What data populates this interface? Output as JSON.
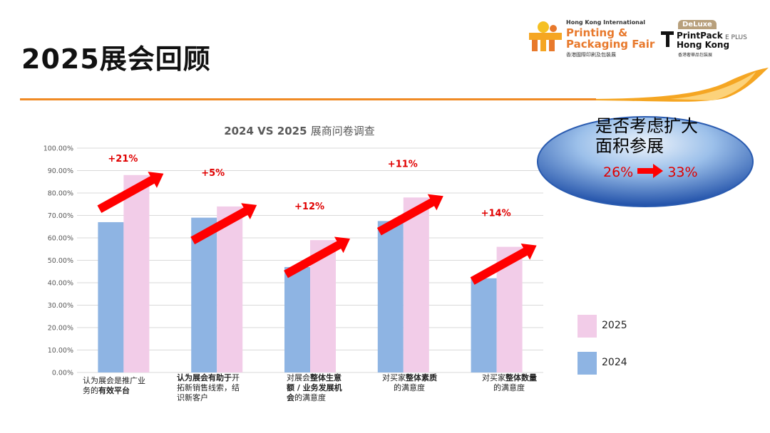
{
  "page": {
    "title": "2025展会回顾"
  },
  "logos": {
    "hkpf": {
      "small": "Hong Kong International",
      "line1": "Printing &",
      "line2": "Packaging Fair",
      "zh": "香港國際印刷及包裝展"
    },
    "deluxe": {
      "tag": "DeLuxe",
      "line1": "PrintPack",
      "line2": "Hong Kong",
      "zh": "香港奢華品包裝展",
      "eplus": "E PLUS"
    }
  },
  "callout": {
    "line1": "是否考虑扩大",
    "line2": "面积参展",
    "from": "26%",
    "to": "33%"
  },
  "chart_data": {
    "type": "bar",
    "title": "2024 VS 2025",
    "title_suffix": "展商问卷调查",
    "categories": [
      {
        "pre": "认为展会是推广业",
        "line2pre": "务的",
        "line2bold": "有效平台",
        "line3": ""
      },
      {
        "pre": "",
        "bold": "认为展会有助于",
        "post": "开",
        "line2": "拓新销售线索，结",
        "line3": "识新客户"
      },
      {
        "pre": "对展会",
        "bold": "整体生意",
        "line2bold": "额 / 业务发展机",
        "line3pre": "会",
        "line3": "的满意度"
      },
      {
        "pre": "对买家",
        "bold": "整体素质",
        "line2": "的满意度"
      },
      {
        "pre": "对买家",
        "bold": "整体数量",
        "line2": "的满意度"
      }
    ],
    "series": [
      {
        "name": "2024",
        "color": "#8eb4e3",
        "values": [
          0.67,
          0.69,
          0.47,
          0.675,
          0.42
        ]
      },
      {
        "name": "2025",
        "color": "#f2cce8",
        "values": [
          0.88,
          0.74,
          0.59,
          0.78,
          0.56
        ]
      }
    ],
    "increase_labels": [
      "+21%",
      "+5%",
      "+12%",
      "+11%",
      "+14%"
    ],
    "ylim": [
      0,
      1.0
    ],
    "yticks": [
      "0.00%",
      "10.00%",
      "20.00%",
      "30.00%",
      "40.00%",
      "50.00%",
      "60.00%",
      "70.00%",
      "80.00%",
      "90.00%",
      "100.00%"
    ],
    "grid": true,
    "legend_position": "right",
    "colors": {
      "arrow": "#ff0000",
      "increase_text": "#e00000",
      "grid": "#d9d9d9"
    }
  }
}
